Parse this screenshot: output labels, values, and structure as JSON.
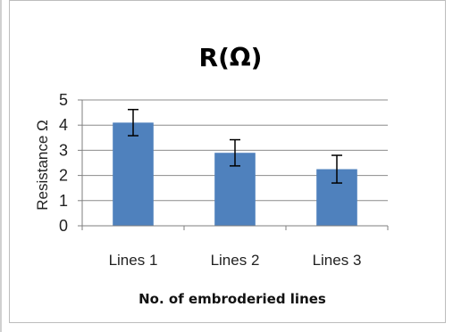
{
  "chart_data": {
    "type": "bar",
    "title": "R(Ω)",
    "xlabel": "No. of embroderied lines",
    "ylabel": "Resistance Ω",
    "categories": [
      "Lines 1",
      "Lines 2",
      "Lines 3"
    ],
    "values": [
      4.1,
      2.9,
      2.25
    ],
    "error": [
      0.52,
      0.52,
      0.55
    ],
    "ylim": [
      0,
      5
    ],
    "yticks": [
      "0",
      "1",
      "2",
      "3",
      "4",
      "5"
    ],
    "grid": true,
    "legend": "none",
    "colors": {
      "bar": "#4f81bd",
      "grid": "#8c8c8c",
      "axis": "#7f7f7f",
      "errorbar": "#000000"
    }
  }
}
